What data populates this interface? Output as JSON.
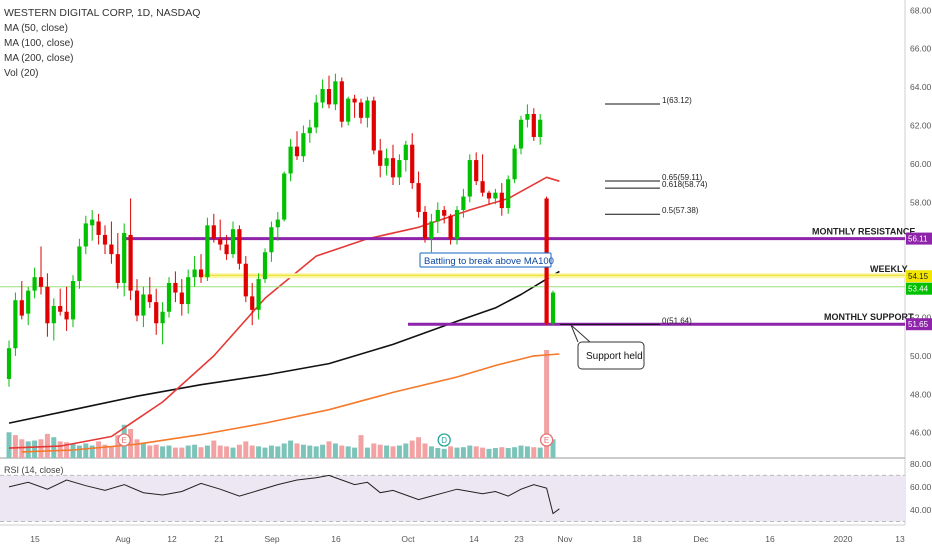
{
  "legend": {
    "symbol": "WESTERN DIGITAL CORP, 1D, NASDAQ",
    "studies": [
      "MA (50, close)",
      "MA (100, close)",
      "MA (200, close)",
      "Vol (20)"
    ],
    "rsi": "RSI (14, close)"
  },
  "colors": {
    "up": "#00c000",
    "down": "#e00000",
    "ma50": "#e53935",
    "ma100": "#111111",
    "ma200": "#f5792a",
    "level": "#8e24aa",
    "weekly": "#f2e600",
    "rsi": "#222222",
    "rsi_band": "#ece7f2"
  },
  "chart_data": {
    "type": "candlestick",
    "price_axis": {
      "ticks": [
        "68.00",
        "66.00",
        "64.00",
        "62.00",
        "60.00",
        "58.00",
        "56.00",
        "54.00",
        "52.00",
        "50.00",
        "48.00",
        "46.00"
      ]
    },
    "rsi_axis": {
      "ticks": [
        "80.00",
        "60.00",
        "40.00"
      ]
    },
    "x_axis": {
      "ticks": [
        "15",
        "Aug",
        "12",
        "21",
        "Sep",
        "16",
        "Oct",
        "14",
        "23",
        "Nov",
        "18",
        "Dec",
        "16",
        "2020",
        "13"
      ]
    },
    "last_price": "53.44",
    "candles": [
      [
        48.8,
        50.8,
        48.4,
        50.4
      ],
      [
        50.4,
        53.3,
        50.0,
        52.9
      ],
      [
        52.9,
        53.9,
        51.9,
        52.1
      ],
      [
        52.2,
        53.6,
        51.6,
        53.4
      ],
      [
        53.4,
        54.6,
        53.0,
        54.1
      ],
      [
        54.1,
        55.7,
        53.2,
        53.6
      ],
      [
        53.6,
        54.3,
        51.0,
        51.7
      ],
      [
        51.7,
        53.0,
        50.8,
        52.6
      ],
      [
        52.6,
        53.5,
        52.1,
        52.3
      ],
      [
        52.3,
        53.6,
        51.3,
        51.9
      ],
      [
        51.9,
        54.2,
        51.5,
        53.9
      ],
      [
        53.9,
        56.1,
        53.5,
        55.7
      ],
      [
        55.7,
        57.3,
        55.3,
        56.9
      ],
      [
        56.8,
        57.6,
        56.0,
        57.1
      ],
      [
        57.0,
        57.4,
        55.8,
        56.3
      ],
      [
        56.3,
        56.8,
        55.3,
        55.8
      ],
      [
        55.8,
        57.0,
        54.8,
        55.3
      ],
      [
        55.3,
        56.4,
        53.5,
        53.8
      ],
      [
        53.8,
        56.9,
        53.1,
        56.4
      ],
      [
        56.3,
        58.2,
        52.9,
        53.4
      ],
      [
        53.4,
        54.0,
        51.8,
        52.1
      ],
      [
        52.1,
        53.6,
        51.5,
        53.2
      ],
      [
        53.2,
        54.1,
        52.5,
        52.8
      ],
      [
        52.8,
        53.5,
        51.1,
        51.7
      ],
      [
        51.7,
        52.8,
        50.6,
        52.3
      ],
      [
        52.3,
        54.1,
        52.0,
        53.8
      ],
      [
        53.8,
        54.4,
        52.8,
        53.3
      ],
      [
        53.3,
        54.0,
        52.1,
        52.7
      ],
      [
        52.7,
        54.5,
        52.2,
        54.1
      ],
      [
        54.1,
        55.2,
        53.6,
        54.5
      ],
      [
        54.5,
        55.3,
        53.8,
        54.1
      ],
      [
        54.1,
        57.2,
        53.9,
        56.8
      ],
      [
        56.8,
        57.4,
        55.9,
        56.1
      ],
      [
        56.1,
        57.1,
        55.5,
        55.8
      ],
      [
        55.8,
        56.3,
        55.0,
        55.3
      ],
      [
        55.3,
        57.0,
        55.1,
        56.6
      ],
      [
        56.6,
        56.8,
        54.5,
        54.8
      ],
      [
        54.8,
        55.2,
        52.8,
        53.1
      ],
      [
        53.1,
        53.8,
        51.6,
        52.4
      ],
      [
        52.4,
        54.3,
        51.9,
        54.0
      ],
      [
        54.0,
        55.6,
        53.8,
        55.4
      ],
      [
        55.4,
        57.0,
        54.9,
        56.7
      ],
      [
        56.7,
        57.5,
        56.0,
        57.1
      ],
      [
        57.1,
        59.6,
        57.0,
        59.5
      ],
      [
        59.5,
        61.3,
        59.1,
        60.9
      ],
      [
        60.9,
        61.7,
        60.2,
        60.4
      ],
      [
        60.4,
        62.0,
        60.1,
        61.6
      ],
      [
        61.6,
        62.3,
        61.1,
        61.9
      ],
      [
        61.9,
        63.6,
        61.6,
        63.2
      ],
      [
        63.2,
        64.4,
        62.9,
        63.9
      ],
      [
        63.9,
        64.6,
        62.9,
        63.1
      ],
      [
        63.1,
        64.7,
        62.8,
        64.3
      ],
      [
        64.3,
        64.5,
        61.9,
        62.2
      ],
      [
        62.2,
        63.5,
        62.0,
        63.4
      ],
      [
        63.4,
        63.6,
        62.4,
        63.2
      ],
      [
        63.2,
        63.4,
        62.1,
        62.4
      ],
      [
        62.4,
        63.5,
        61.9,
        63.3
      ],
      [
        63.3,
        63.5,
        60.5,
        60.7
      ],
      [
        60.7,
        61.3,
        59.3,
        59.9
      ],
      [
        59.9,
        60.8,
        59.4,
        60.3
      ],
      [
        60.3,
        61.0,
        58.9,
        59.3
      ],
      [
        59.3,
        60.5,
        58.9,
        60.2
      ],
      [
        60.2,
        61.2,
        59.6,
        61.0
      ],
      [
        61.0,
        61.6,
        58.7,
        59.0
      ],
      [
        59.0,
        59.6,
        57.2,
        57.5
      ],
      [
        57.5,
        57.8,
        55.9,
        56.1
      ],
      [
        56.1,
        57.4,
        55.4,
        57.0
      ],
      [
        57.0,
        58.0,
        56.4,
        57.6
      ],
      [
        57.6,
        57.8,
        56.9,
        57.3
      ],
      [
        57.3,
        57.4,
        55.8,
        56.1
      ],
      [
        56.1,
        57.8,
        55.8,
        57.6
      ],
      [
        57.6,
        58.7,
        57.2,
        58.3
      ],
      [
        58.3,
        60.5,
        58.0,
        60.2
      ],
      [
        60.2,
        60.6,
        58.9,
        59.1
      ],
      [
        59.1,
        60.5,
        58.3,
        58.5
      ],
      [
        58.5,
        58.6,
        57.9,
        58.2
      ],
      [
        58.2,
        58.7,
        57.9,
        58.5
      ],
      [
        58.5,
        59.0,
        57.3,
        57.7
      ],
      [
        57.7,
        59.4,
        57.4,
        59.2
      ],
      [
        59.2,
        61.0,
        59.0,
        60.8
      ],
      [
        60.8,
        62.5,
        60.5,
        62.3
      ],
      [
        62.3,
        63.1,
        61.9,
        62.6
      ],
      [
        62.6,
        62.9,
        61.2,
        61.4
      ],
      [
        61.4,
        62.6,
        61.0,
        62.3
      ],
      [
        58.2,
        58.3,
        51.6,
        51.7
      ],
      [
        51.7,
        53.4,
        51.6,
        53.3
      ]
    ],
    "volume": [
      [
        0.62,
        1
      ],
      [
        0.55,
        0
      ],
      [
        0.45,
        0
      ],
      [
        0.4,
        1
      ],
      [
        0.42,
        1
      ],
      [
        0.45,
        0
      ],
      [
        0.58,
        0
      ],
      [
        0.5,
        1
      ],
      [
        0.4,
        0
      ],
      [
        0.38,
        0
      ],
      [
        0.35,
        1
      ],
      [
        0.3,
        1
      ],
      [
        0.35,
        1
      ],
      [
        0.3,
        1
      ],
      [
        0.4,
        0
      ],
      [
        0.32,
        0
      ],
      [
        0.28,
        0
      ],
      [
        0.55,
        0
      ],
      [
        0.8,
        1
      ],
      [
        0.7,
        0
      ],
      [
        0.45,
        0
      ],
      [
        0.35,
        1
      ],
      [
        0.3,
        0
      ],
      [
        0.32,
        0
      ],
      [
        0.28,
        1
      ],
      [
        0.3,
        1
      ],
      [
        0.25,
        0
      ],
      [
        0.25,
        0
      ],
      [
        0.3,
        1
      ],
      [
        0.32,
        1
      ],
      [
        0.26,
        0
      ],
      [
        0.3,
        1
      ],
      [
        0.42,
        0
      ],
      [
        0.3,
        0
      ],
      [
        0.28,
        0
      ],
      [
        0.25,
        1
      ],
      [
        0.32,
        0
      ],
      [
        0.4,
        0
      ],
      [
        0.3,
        0
      ],
      [
        0.28,
        1
      ],
      [
        0.25,
        1
      ],
      [
        0.3,
        1
      ],
      [
        0.28,
        1
      ],
      [
        0.35,
        1
      ],
      [
        0.42,
        1
      ],
      [
        0.35,
        0
      ],
      [
        0.32,
        1
      ],
      [
        0.3,
        1
      ],
      [
        0.28,
        1
      ],
      [
        0.32,
        1
      ],
      [
        0.4,
        0
      ],
      [
        0.35,
        1
      ],
      [
        0.3,
        0
      ],
      [
        0.28,
        1
      ],
      [
        0.25,
        1
      ],
      [
        0.55,
        0
      ],
      [
        0.25,
        1
      ],
      [
        0.35,
        0
      ],
      [
        0.32,
        0
      ],
      [
        0.3,
        1
      ],
      [
        0.28,
        0
      ],
      [
        0.3,
        1
      ],
      [
        0.35,
        1
      ],
      [
        0.42,
        0
      ],
      [
        0.5,
        0
      ],
      [
        0.35,
        0
      ],
      [
        0.28,
        1
      ],
      [
        0.24,
        1
      ],
      [
        0.22,
        1
      ],
      [
        0.28,
        0
      ],
      [
        0.25,
        1
      ],
      [
        0.26,
        1
      ],
      [
        0.3,
        1
      ],
      [
        0.28,
        0
      ],
      [
        0.25,
        0
      ],
      [
        0.22,
        1
      ],
      [
        0.24,
        1
      ],
      [
        0.26,
        0
      ],
      [
        0.24,
        1
      ],
      [
        0.26,
        1
      ],
      [
        0.3,
        1
      ],
      [
        0.28,
        1
      ],
      [
        0.26,
        0
      ],
      [
        0.25,
        1
      ],
      [
        2.6,
        0
      ],
      [
        0.45,
        1
      ]
    ],
    "ma50": [
      [
        0,
        45.2
      ],
      [
        8,
        45.3
      ],
      [
        16,
        45.8
      ],
      [
        24,
        47.6
      ],
      [
        32,
        50.0
      ],
      [
        40,
        53.0
      ],
      [
        48,
        55.2
      ],
      [
        56,
        56.1
      ],
      [
        64,
        56.7
      ],
      [
        72,
        57.6
      ],
      [
        78,
        58.2
      ],
      [
        84,
        59.3
      ],
      [
        86,
        59.1
      ]
    ],
    "ma100": [
      [
        0,
        46.5
      ],
      [
        10,
        47.2
      ],
      [
        20,
        47.9
      ],
      [
        30,
        48.5
      ],
      [
        40,
        49.0
      ],
      [
        50,
        49.6
      ],
      [
        60,
        50.6
      ],
      [
        70,
        51.8
      ],
      [
        76,
        52.5
      ],
      [
        80,
        53.2
      ],
      [
        84,
        54.0
      ],
      [
        86,
        54.4
      ]
    ],
    "ma200": [
      [
        2,
        45.0
      ],
      [
        10,
        45.1
      ],
      [
        20,
        45.4
      ],
      [
        30,
        45.9
      ],
      [
        40,
        46.5
      ],
      [
        50,
        47.2
      ],
      [
        60,
        48.1
      ],
      [
        70,
        48.9
      ],
      [
        76,
        49.5
      ],
      [
        82,
        50.0
      ],
      [
        86,
        50.1
      ]
    ],
    "rsi": [
      [
        0,
        60
      ],
      [
        3,
        64
      ],
      [
        6,
        58
      ],
      [
        9,
        66
      ],
      [
        12,
        61
      ],
      [
        15,
        57
      ],
      [
        18,
        62
      ],
      [
        21,
        55
      ],
      [
        24,
        53
      ],
      [
        27,
        56
      ],
      [
        30,
        63
      ],
      [
        33,
        58
      ],
      [
        36,
        52
      ],
      [
        39,
        57
      ],
      [
        42,
        62
      ],
      [
        45,
        66
      ],
      [
        48,
        68
      ],
      [
        50,
        70
      ],
      [
        52,
        66
      ],
      [
        54,
        62
      ],
      [
        56,
        64
      ],
      [
        58,
        55
      ],
      [
        60,
        57
      ],
      [
        62,
        53
      ],
      [
        64,
        49
      ],
      [
        66,
        52
      ],
      [
        68,
        55
      ],
      [
        70,
        58
      ],
      [
        72,
        56
      ],
      [
        74,
        54
      ],
      [
        76,
        56
      ],
      [
        78,
        52
      ],
      [
        80,
        58
      ],
      [
        82,
        62
      ],
      [
        84,
        59
      ],
      [
        85,
        37
      ],
      [
        86,
        41
      ]
    ],
    "fib_levels": [
      {
        "label": "1(63.12)",
        "price": 63.12
      },
      {
        "label": "0.65(59.11)",
        "price": 59.11
      },
      {
        "label": "0.618(58.74)",
        "price": 58.74
      },
      {
        "label": "0.5(57.38)",
        "price": 57.38
      },
      {
        "label": "0(51.64)",
        "price": 51.64
      }
    ],
    "levels": [
      {
        "name": "MONTHLY RESISTANCE",
        "price": 56.11,
        "badge": "56.11"
      },
      {
        "name": "WEEKLY",
        "price": 54.15,
        "badge": "54.15"
      },
      {
        "name": "MONTHLY SUPPORT",
        "price": 51.65,
        "badge": "51.65"
      }
    ],
    "annotations": {
      "ma100_note": "Battling to break above  MA100",
      "support_note": "Support held"
    },
    "event_marks": [
      {
        "x": 18,
        "letter": "E"
      },
      {
        "x": 68,
        "letter": "D"
      },
      {
        "x": 84,
        "letter": "E"
      }
    ]
  }
}
